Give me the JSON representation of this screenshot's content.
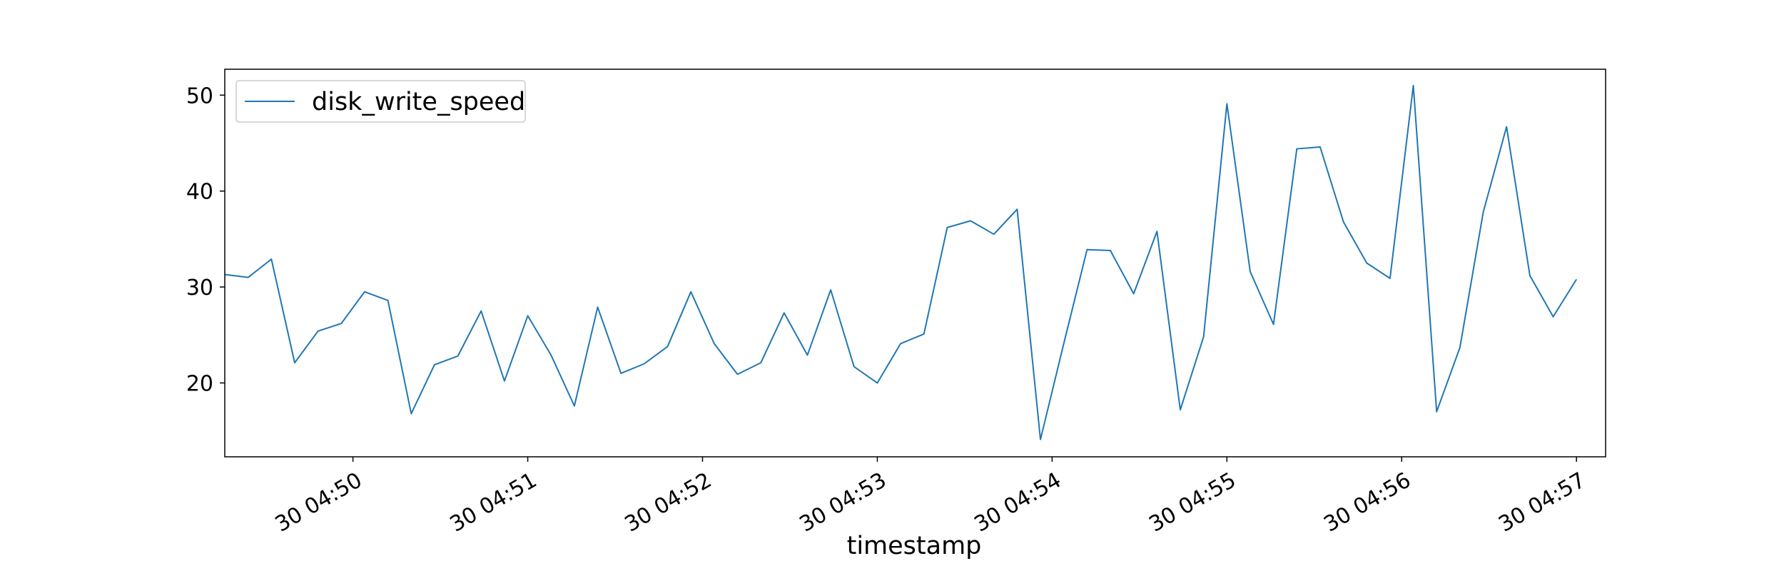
{
  "chart_data": {
    "type": "line",
    "title": "",
    "xlabel": "timestamp",
    "ylabel": "",
    "x_start": "30 04:49:16",
    "x_step_seconds": 8,
    "xlim": [
      "30 04:49:16",
      "30 04:57:10"
    ],
    "ylim": [
      12.3,
      52.7
    ],
    "y_ticks": [
      20,
      30,
      40,
      50
    ],
    "x_ticks": [
      "30 04:50",
      "30 04:51",
      "30 04:52",
      "30 04:53",
      "30 04:54",
      "30 04:55",
      "30 04:56",
      "30 04:57"
    ],
    "grid": false,
    "legend": {
      "placement": "top-left"
    },
    "series": [
      {
        "name": "disk_write_speed",
        "color": "#1f77b4",
        "values": [
          31.3,
          31.0,
          32.9,
          22.1,
          25.4,
          26.2,
          29.5,
          28.6,
          16.8,
          21.9,
          22.8,
          27.5,
          20.2,
          27.0,
          22.9,
          17.6,
          27.9,
          21.0,
          22.0,
          23.8,
          29.5,
          24.1,
          20.9,
          22.1,
          27.3,
          22.9,
          29.7,
          21.7,
          20.0,
          24.1,
          25.1,
          36.2,
          36.9,
          35.5,
          38.1,
          14.1,
          24.1,
          33.9,
          33.8,
          29.3,
          35.8,
          17.2,
          24.8,
          49.1,
          31.6,
          26.1,
          44.4,
          44.6,
          36.8,
          32.5,
          30.9,
          51.0,
          17.0,
          23.7,
          37.8,
          46.7,
          31.2,
          26.9,
          30.8
        ]
      }
    ]
  }
}
